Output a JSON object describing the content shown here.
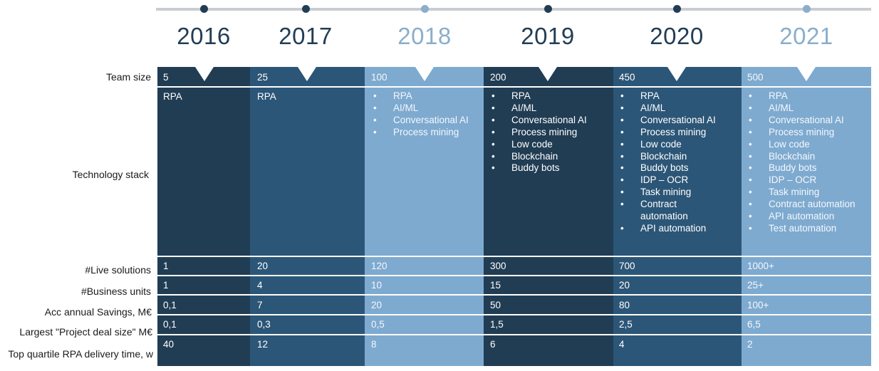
{
  "colors": {
    "col_2016": "#213d54",
    "col_2017": "#2c5677",
    "col_2018": "#7eaad0",
    "col_2019": "#213d54",
    "col_2020": "#2c5677",
    "col_2021": "#7eaad0",
    "text_light": "#ffffff",
    "text_on_light_bg": "#f4f8fb",
    "year_dark": "#213d54",
    "year_light": "#8aaecb"
  },
  "years": [
    "2016",
    "2017",
    "2018",
    "2019",
    "2020",
    "2021"
  ],
  "row_labels": {
    "team_size": "Team size",
    "technology_stack": "Technology stack",
    "live_solutions": "#Live solutions",
    "business_units": "#Business units",
    "savings": "Acc annual  Savings, M€",
    "deal_size": "Largest \"Project deal size\" M€",
    "delivery_time": "Top quartile RPA delivery time, w"
  },
  "columns": [
    {
      "team_size": "5",
      "stack_plain": "RPA",
      "stack": [],
      "live_solutions": "1",
      "business_units": "1",
      "savings": "0,1",
      "deal_size": "0,1",
      "delivery_time": "40"
    },
    {
      "team_size": "25",
      "stack_plain": "RPA",
      "stack": [],
      "live_solutions": "20",
      "business_units": "4",
      "savings": "7",
      "deal_size": "0,3",
      "delivery_time": "12"
    },
    {
      "team_size": "100",
      "stack_plain": "",
      "stack": [
        "RPA",
        "AI/ML",
        "Conversational AI",
        "Process mining"
      ],
      "live_solutions": "120",
      "business_units": "10",
      "savings": "20",
      "deal_size": "0,5",
      "delivery_time": "8"
    },
    {
      "team_size": "200",
      "stack_plain": "",
      "stack": [
        "RPA",
        "AI/ML",
        "Conversational AI",
        "Process mining",
        "Low code",
        "Blockchain",
        "Buddy bots"
      ],
      "live_solutions": "300",
      "business_units": "15",
      "savings": "50",
      "deal_size": "1,5",
      "delivery_time": "6"
    },
    {
      "team_size": "450",
      "stack_plain": "",
      "stack": [
        "RPA",
        "AI/ML",
        "Conversational AI",
        "Process mining",
        "Low code",
        "Blockchain",
        "Buddy bots",
        "IDP – OCR",
        "Task mining",
        "Contract automation",
        "API automation"
      ],
      "live_solutions": "700",
      "business_units": "20",
      "savings": "80",
      "deal_size": "2,5",
      "delivery_time": "4"
    },
    {
      "team_size": "500",
      "stack_plain": "",
      "stack": [
        "RPA",
        "AI/ML",
        "Conversational AI",
        "Process mining",
        "Low code",
        "Blockchain",
        "Buddy bots",
        "IDP – OCR",
        "Task mining",
        "Contract automation",
        "API automation",
        "Test automation"
      ],
      "live_solutions": "1000+",
      "business_units": "25+",
      "savings": "100+",
      "deal_size": "6,5",
      "delivery_time": "2"
    }
  ]
}
